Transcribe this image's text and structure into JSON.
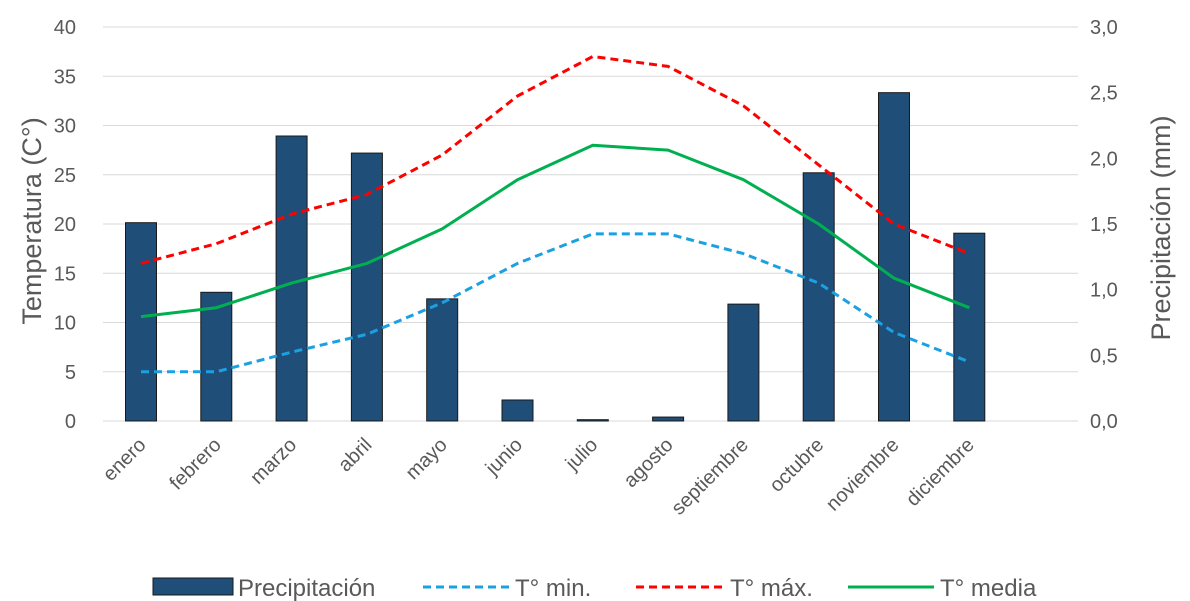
{
  "chart_data": {
    "type": "bar",
    "categories": [
      "enero",
      "febrero",
      "marzo",
      "abril",
      "mayo",
      "junio",
      "julio",
      "agosto",
      "septiembre",
      "octubre",
      "noviembre",
      "diciembre"
    ],
    "series": [
      {
        "name": "Precipitación",
        "type": "bar",
        "axis": "right",
        "color": "#1f4e79",
        "values": [
          1.51,
          0.98,
          2.17,
          2.04,
          0.93,
          0.16,
          0.01,
          0.03,
          0.89,
          1.89,
          2.5,
          1.43
        ]
      },
      {
        "name": "T° min.",
        "type": "line",
        "axis": "left",
        "color": "#1ba1e2",
        "dash": "dashed",
        "values": [
          5,
          5,
          7,
          8.8,
          12,
          16,
          19,
          19,
          17,
          14,
          9,
          6
        ]
      },
      {
        "name": "T° máx.",
        "type": "line",
        "axis": "left",
        "color": "#ff0000",
        "dash": "dashed",
        "values": [
          16,
          18,
          21,
          23,
          27,
          33,
          37,
          36,
          32,
          26,
          20,
          17
        ]
      },
      {
        "name": "T° media",
        "type": "line",
        "axis": "left",
        "color": "#00b050",
        "dash": "solid",
        "values": [
          10.6,
          11.5,
          14,
          16,
          19.5,
          24.5,
          28,
          27.5,
          24.5,
          20,
          14.5,
          11.5
        ]
      }
    ],
    "ylabel": "Temperatura (C°)",
    "y2label": "Precipitación  (mm)",
    "ylim": [
      0,
      40
    ],
    "y2lim": [
      0,
      3
    ],
    "yticks": [
      "0",
      "5",
      "10",
      "15",
      "20",
      "25",
      "30",
      "35",
      "40"
    ],
    "y2ticks": [
      "0,0",
      "0,5",
      "1,0",
      "1,5",
      "2,0",
      "2,5",
      "3,0"
    ],
    "grid": true,
    "legend_position": "bottom"
  }
}
